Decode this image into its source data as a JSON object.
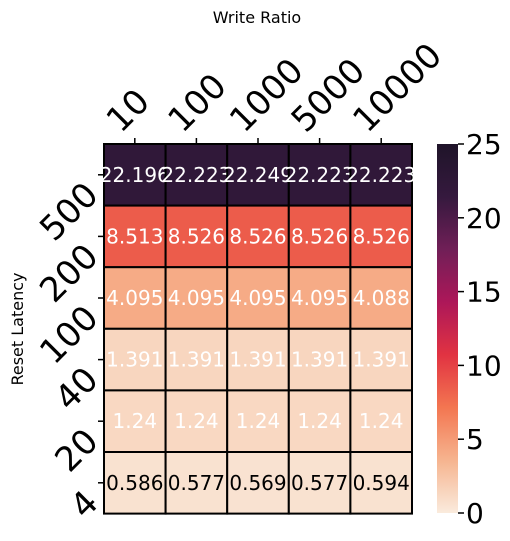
{
  "chart_data": {
    "type": "heatmap",
    "xlabel": "Write Ratio",
    "ylabel": "Reset Latency",
    "x_categories": [
      "10",
      "100",
      "1000",
      "5000",
      "10000"
    ],
    "y_categories": [
      "500",
      "200",
      "100",
      "40",
      "20",
      "4"
    ],
    "values": [
      [
        22.196,
        22.223,
        22.249,
        22.223,
        22.223
      ],
      [
        8.513,
        8.526,
        8.526,
        8.526,
        8.526
      ],
      [
        4.095,
        4.095,
        4.095,
        4.095,
        4.088
      ],
      [
        1.391,
        1.391,
        1.391,
        1.391,
        1.391
      ],
      [
        1.24,
        1.24,
        1.24,
        1.24,
        1.24
      ],
      [
        0.586,
        0.577,
        0.569,
        0.577,
        0.594
      ]
    ],
    "cell_labels": [
      [
        "22.196",
        "22.223",
        "22.249",
        "22.223",
        "22.223"
      ],
      [
        "8.513",
        "8.526",
        "8.526",
        "8.526",
        "8.526"
      ],
      [
        "4.095",
        "4.095",
        "4.095",
        "4.095",
        "4.088"
      ],
      [
        "1.391",
        "1.391",
        "1.391",
        "1.391",
        "1.391"
      ],
      [
        "1.24",
        "1.24",
        "1.24",
        "1.24",
        "1.24"
      ],
      [
        "0.586",
        "0.577",
        "0.569",
        "0.577",
        "0.594"
      ]
    ],
    "colorbar": {
      "range": [
        0,
        25
      ],
      "ticks": [
        "0",
        "5",
        "10",
        "15",
        "20",
        "25"
      ],
      "colormap": "rocket_r",
      "stops": [
        "#faebdd",
        "#f6b48f",
        "#f37651",
        "#e13342",
        "#ad1759",
        "#701f57",
        "#35193e",
        "#1f1429"
      ]
    },
    "grid": false
  }
}
